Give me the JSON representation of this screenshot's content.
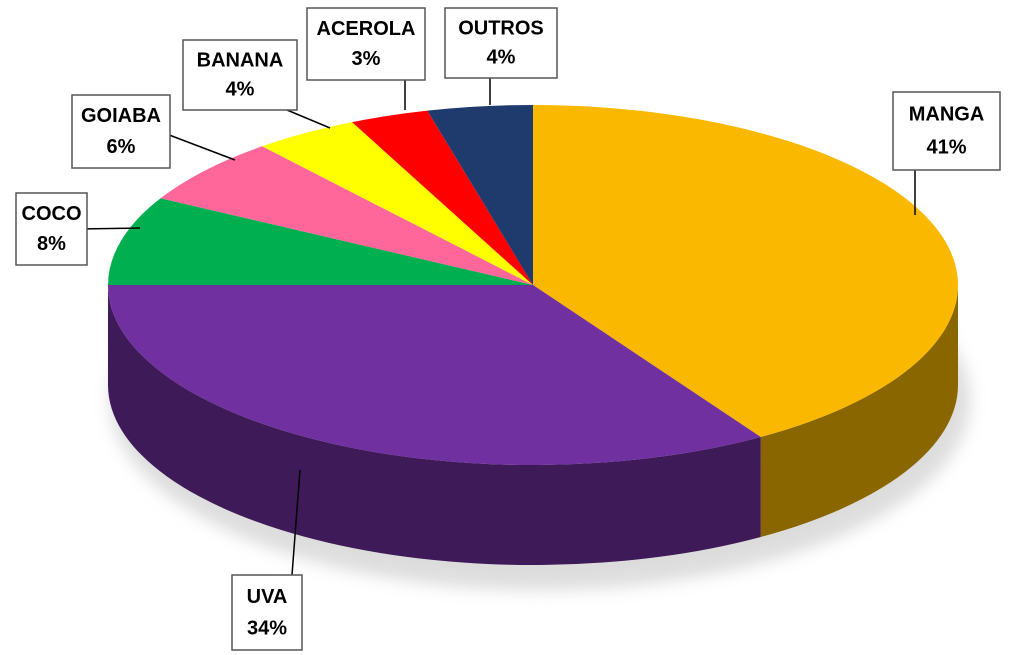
{
  "chart_data": {
    "type": "pie3d",
    "categories": [
      "MANGA",
      "UVA",
      "COCO",
      "GOIABA",
      "BANANA",
      "ACEROLA",
      "OUTROS"
    ],
    "values": [
      41,
      34,
      8,
      6,
      4,
      3,
      4
    ],
    "value_labels": [
      "41%",
      "34%",
      "8%",
      "6%",
      "4%",
      "3%",
      "4%"
    ],
    "colors": [
      "#FAB900",
      "#7030A0",
      "#00B050",
      "#FF6699",
      "#FFFF00",
      "#FF0000",
      "#1F3B6E"
    ]
  }
}
